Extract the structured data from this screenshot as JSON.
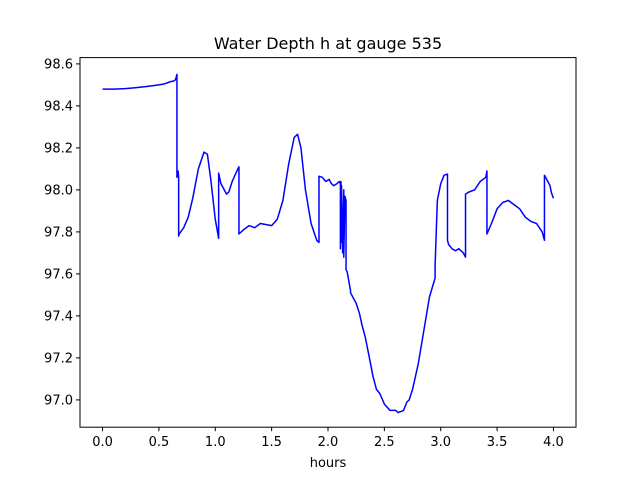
{
  "chart_data": {
    "type": "line",
    "title": "Water Depth h at gauge 535",
    "xlabel": "hours",
    "ylabel": "",
    "xlim": [
      -0.2,
      4.2
    ],
    "ylim": [
      96.87,
      98.63
    ],
    "xticks": [
      0.0,
      0.5,
      1.0,
      1.5,
      2.0,
      2.5,
      3.0,
      3.5,
      4.0
    ],
    "xtick_labels": [
      "0.0",
      "0.5",
      "1.0",
      "1.5",
      "2.0",
      "2.5",
      "3.0",
      "3.5",
      "4.0"
    ],
    "yticks": [
      97.0,
      97.2,
      97.4,
      97.6,
      97.8,
      98.0,
      98.2,
      98.4,
      98.6
    ],
    "ytick_labels": [
      "97.0",
      "97.2",
      "97.4",
      "97.6",
      "97.8",
      "98.0",
      "98.2",
      "98.4",
      "98.6"
    ],
    "grid": false,
    "series": [
      {
        "color": "#0000ff",
        "x": [
          0.0,
          0.1,
          0.2,
          0.3,
          0.4,
          0.5,
          0.55,
          0.6,
          0.64,
          0.65,
          0.66,
          0.66,
          0.67,
          0.675,
          0.675,
          0.68,
          0.72,
          0.76,
          0.8,
          0.85,
          0.9,
          0.93,
          0.96,
          1.0,
          1.03,
          1.03,
          1.05,
          1.1,
          1.12,
          1.15,
          1.2,
          1.21,
          1.21,
          1.25,
          1.3,
          1.35,
          1.4,
          1.5,
          1.55,
          1.6,
          1.65,
          1.7,
          1.73,
          1.76,
          1.8,
          1.85,
          1.9,
          1.92,
          1.92,
          1.95,
          1.98,
          2.01,
          2.03,
          2.05,
          2.08,
          2.1,
          2.11,
          2.11,
          2.115,
          2.12,
          2.12,
          2.13,
          2.14,
          2.14,
          2.15,
          2.16,
          2.16,
          2.17,
          2.18,
          2.2,
          2.2,
          2.23,
          2.24,
          2.25,
          2.28,
          2.3,
          2.33,
          2.36,
          2.4,
          2.43,
          2.46,
          2.5,
          2.55,
          2.6,
          2.62,
          2.65,
          2.67,
          2.7,
          2.72,
          2.75,
          2.8,
          2.85,
          2.9,
          2.95,
          2.95,
          2.97,
          3.0,
          3.03,
          3.06,
          3.06,
          3.07,
          3.1,
          3.13,
          3.16,
          3.2,
          3.22,
          3.22,
          3.25,
          3.3,
          3.35,
          3.4,
          3.41,
          3.41,
          3.45,
          3.5,
          3.55,
          3.6,
          3.65,
          3.7,
          3.75,
          3.8,
          3.85,
          3.9,
          3.92,
          3.92,
          3.95,
          3.97,
          3.98,
          4.0
        ],
        "y": [
          98.48,
          98.48,
          98.482,
          98.487,
          98.493,
          98.5,
          98.505,
          98.515,
          98.52,
          98.53,
          98.55,
          98.06,
          98.09,
          98.06,
          97.78,
          97.79,
          97.82,
          97.87,
          97.96,
          98.1,
          98.18,
          98.17,
          98.05,
          97.86,
          97.77,
          98.08,
          98.03,
          97.98,
          97.99,
          98.04,
          98.1,
          98.11,
          97.79,
          97.81,
          97.83,
          97.82,
          97.84,
          97.83,
          97.86,
          97.95,
          98.12,
          98.25,
          98.265,
          98.2,
          98.0,
          97.84,
          97.76,
          97.75,
          98.065,
          98.06,
          98.04,
          98.05,
          98.03,
          98.02,
          98.03,
          98.04,
          98.03,
          97.72,
          98.04,
          97.75,
          98.02,
          97.7,
          98.0,
          97.68,
          97.97,
          97.95,
          97.62,
          97.61,
          97.58,
          97.52,
          97.51,
          97.48,
          97.47,
          97.46,
          97.41,
          97.36,
          97.3,
          97.22,
          97.11,
          97.05,
          97.03,
          96.98,
          96.95,
          96.95,
          96.94,
          96.945,
          96.95,
          96.99,
          97.0,
          97.05,
          97.17,
          97.33,
          97.49,
          97.58,
          97.64,
          97.95,
          98.03,
          98.07,
          98.075,
          97.76,
          97.74,
          97.72,
          97.71,
          97.72,
          97.7,
          97.68,
          97.98,
          97.99,
          98.0,
          98.04,
          98.06,
          98.09,
          97.79,
          97.84,
          97.91,
          97.94,
          97.95,
          97.93,
          97.91,
          97.87,
          97.85,
          97.84,
          97.8,
          97.76,
          98.07,
          98.04,
          98.02,
          97.99,
          97.96
        ]
      }
    ]
  }
}
